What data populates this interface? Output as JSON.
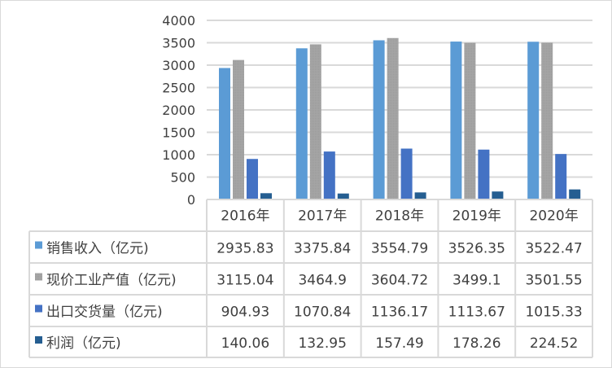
{
  "chart_data": {
    "type": "bar",
    "categories": [
      "2016年",
      "2017年",
      "2018年",
      "2019年",
      "2020年"
    ],
    "ylim": [
      0,
      4000
    ],
    "yticks": [
      0,
      500,
      1000,
      1500,
      2000,
      2500,
      3000,
      3500,
      4000
    ],
    "grid": true,
    "legend": "data-table",
    "series": [
      {
        "name": "销售收入（亿元)",
        "color": "#5b9bd5",
        "values": [
          2935.83,
          3375.84,
          3554.79,
          3526.35,
          3522.47
        ],
        "labels": [
          "2935.83",
          "3375.84",
          "3554.79",
          "3526.35",
          "3522.47"
        ]
      },
      {
        "name": "现价工业产值（亿元)",
        "color": "#a5a5a5",
        "values": [
          3115.04,
          3464.9,
          3604.72,
          3499.1,
          3501.55
        ],
        "labels": [
          "3115.04",
          "3464.9",
          "3604.72",
          "3499.1",
          "3501.55"
        ]
      },
      {
        "name": "出口交货量（亿元)",
        "color": "#4472c4",
        "values": [
          904.93,
          1070.84,
          1136.17,
          1113.67,
          1015.33
        ],
        "labels": [
          "904.93",
          "1070.84",
          "1136.17",
          "1113.67",
          "1015.33"
        ]
      },
      {
        "name": "利润（亿元)",
        "color": "#255e91",
        "values": [
          140.06,
          132.95,
          157.49,
          178.26,
          224.52
        ],
        "labels": [
          "140.06",
          "132.95",
          "157.49",
          "178.26",
          "224.52"
        ]
      }
    ]
  }
}
